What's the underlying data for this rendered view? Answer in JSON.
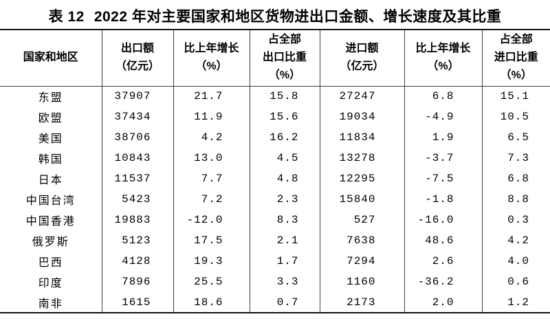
{
  "title": {
    "prefix": "表 12",
    "text": "2022 年对主要国家和地区货物进出口金额、增长速度及其比重"
  },
  "colors": {
    "text": "#000000",
    "thick_rule": "#111111",
    "thin_rule": "#3c3c3c",
    "background": "#ffffff"
  },
  "table": {
    "columns": [
      {
        "id": "region",
        "lines": [
          "国家和地区"
        ]
      },
      {
        "id": "export-value",
        "lines": [
          "出口额",
          "（亿元）"
        ]
      },
      {
        "id": "export-growth",
        "lines": [
          "比上年增长",
          "（%）"
        ]
      },
      {
        "id": "export-share",
        "lines": [
          "占全部",
          "出口比重",
          "（%）"
        ]
      },
      {
        "id": "import-value",
        "lines": [
          "进口额",
          "（亿元）"
        ]
      },
      {
        "id": "import-growth",
        "lines": [
          "比上年增长",
          "（%）"
        ]
      },
      {
        "id": "import-share",
        "lines": [
          "占全部",
          "进口比重",
          "（%）"
        ]
      }
    ],
    "rows": [
      [
        "东盟",
        "37907",
        "21.7",
        "15.8",
        "27247",
        "6.8",
        "15.1"
      ],
      [
        "欧盟",
        "37434",
        "11.9",
        "15.6",
        "19034",
        "-4.9",
        "10.5"
      ],
      [
        "美国",
        "38706",
        "4.2",
        "16.2",
        "11834",
        "1.9",
        "6.5"
      ],
      [
        "韩国",
        "10843",
        "13.0",
        "4.5",
        "13278",
        "-3.7",
        "7.3"
      ],
      [
        "日本",
        "11537",
        "7.7",
        "4.8",
        "12295",
        "-7.5",
        "6.8"
      ],
      [
        "中国台湾",
        "5423",
        "7.2",
        "2.3",
        "15840",
        "-1.8",
        "8.8"
      ],
      [
        "中国香港",
        "19883",
        "-12.0",
        "8.3",
        "527",
        "-16.0",
        "0.3"
      ],
      [
        "俄罗斯",
        "5123",
        "17.5",
        "2.1",
        "7638",
        "48.6",
        "4.2"
      ],
      [
        "巴西",
        "4128",
        "19.3",
        "1.7",
        "7294",
        "2.6",
        "4.0"
      ],
      [
        "印度",
        "7896",
        "25.5",
        "3.3",
        "1160",
        "-36.2",
        "0.6"
      ],
      [
        "南非",
        "1615",
        "18.6",
        "0.7",
        "2173",
        "2.0",
        "1.2"
      ]
    ]
  }
}
